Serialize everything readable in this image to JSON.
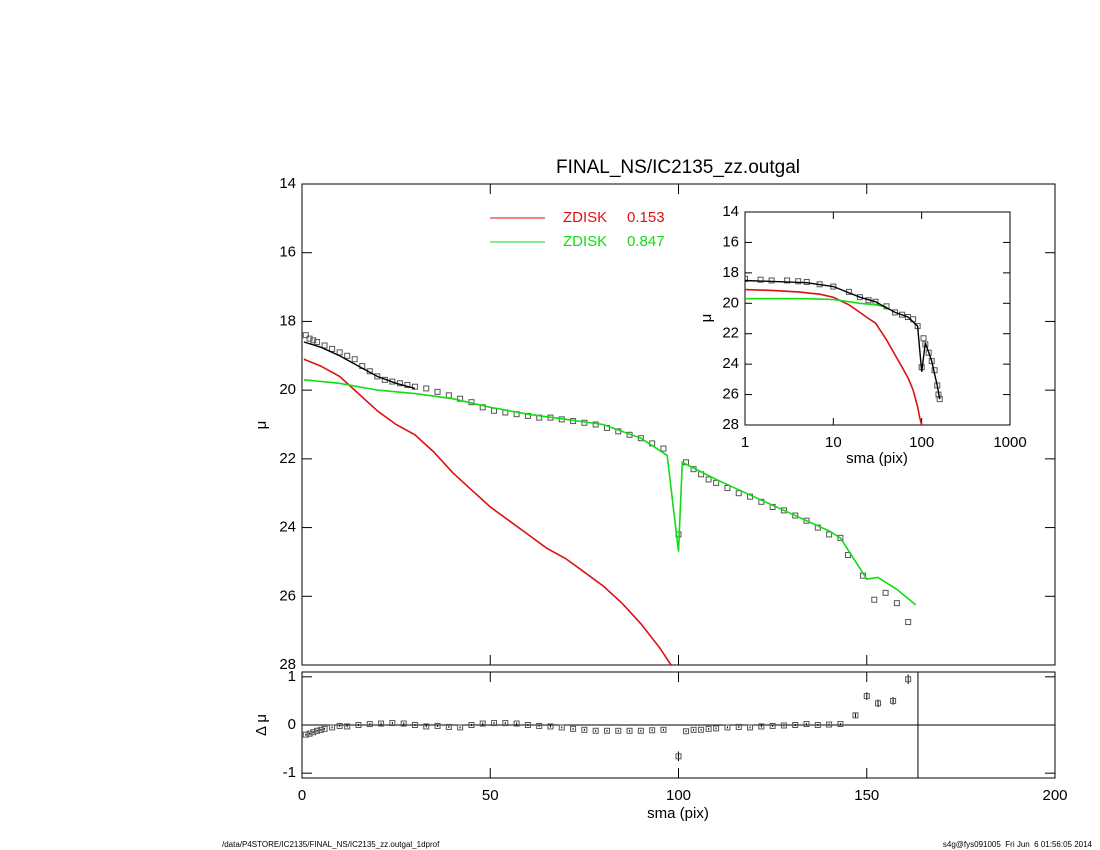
{
  "chart_data": [
    {
      "type": "line",
      "title": "FINAL_NS/IC2135_zz.outgal",
      "ylabel": "μ",
      "invert_y": true,
      "ylim": [
        14,
        28
      ],
      "yticks": [
        14,
        16,
        18,
        20,
        22,
        24,
        26,
        28
      ],
      "observed": {
        "color": "#555555",
        "x": [
          1,
          2,
          3,
          4,
          6,
          8,
          10,
          12,
          14,
          16,
          18,
          20,
          22,
          24,
          26,
          28,
          30,
          33,
          36,
          39,
          42,
          45,
          48,
          51,
          54,
          57,
          60,
          63,
          66,
          69,
          72,
          75,
          78,
          81,
          84,
          87,
          90,
          93,
          96,
          100,
          102,
          104,
          106,
          108,
          110,
          113,
          116,
          119,
          122,
          125,
          128,
          131,
          134,
          137,
          140,
          143,
          145,
          149,
          152,
          155,
          158,
          161
        ],
        "values": [
          18.4,
          18.5,
          18.55,
          18.6,
          18.7,
          18.8,
          18.9,
          19.0,
          19.1,
          19.3,
          19.45,
          19.6,
          19.7,
          19.75,
          19.8,
          19.85,
          19.9,
          19.95,
          20.05,
          20.15,
          20.25,
          20.35,
          20.5,
          20.6,
          20.65,
          20.7,
          20.75,
          20.8,
          20.8,
          20.85,
          20.9,
          20.95,
          21.0,
          21.1,
          21.2,
          21.3,
          21.4,
          21.55,
          21.7,
          24.2,
          22.1,
          22.3,
          22.45,
          22.6,
          22.7,
          22.85,
          23.0,
          23.1,
          23.25,
          23.4,
          23.5,
          23.65,
          23.8,
          24.0,
          24.2,
          24.3,
          24.8,
          25.4,
          26.1,
          25.9,
          26.2,
          26.75
        ]
      },
      "model": {
        "color": "#000000",
        "x": [
          0.5,
          5,
          10,
          15,
          20,
          25,
          30
        ],
        "values": [
          18.6,
          18.75,
          19.0,
          19.3,
          19.6,
          19.8,
          19.95
        ]
      },
      "series": [
        {
          "name": "ZDISK",
          "value": 0.153,
          "color": "#dd1111",
          "x": [
            0.5,
            5,
            10,
            15,
            20,
            25,
            30,
            35,
            40,
            45,
            50,
            55,
            60,
            65,
            70,
            75,
            80,
            85,
            90,
            95,
            98
          ],
          "values": [
            19.1,
            19.3,
            19.6,
            20.1,
            20.6,
            21.0,
            21.3,
            21.8,
            22.4,
            22.9,
            23.4,
            23.8,
            24.2,
            24.6,
            24.9,
            25.3,
            25.7,
            26.2,
            26.8,
            27.5,
            28.0
          ]
        },
        {
          "name": "ZDISK",
          "value": 0.847,
          "color": "#11dd11",
          "x": [
            0.5,
            10,
            20,
            30,
            40,
            50,
            60,
            70,
            80,
            90,
            97,
            100,
            101,
            110,
            120,
            130,
            140,
            143,
            150,
            153,
            158,
            163
          ],
          "values": [
            19.7,
            19.8,
            20.0,
            20.1,
            20.25,
            20.5,
            20.7,
            20.85,
            21.0,
            21.4,
            21.9,
            24.7,
            22.1,
            22.6,
            23.1,
            23.6,
            24.1,
            24.3,
            25.5,
            25.45,
            25.8,
            26.25
          ]
        }
      ]
    },
    {
      "type": "line",
      "xscale": "log",
      "xlabel": "sma (pix)",
      "ylabel": "μ",
      "invert_y": true,
      "xlim": [
        1,
        1000
      ],
      "xticks": [
        1,
        10,
        100,
        1000
      ],
      "ylim": [
        14,
        28
      ],
      "yticks": [
        14,
        16,
        18,
        20,
        22,
        24,
        26,
        28
      ],
      "observed": {
        "color": "#555555",
        "x": [
          1,
          1.5,
          2,
          3,
          4,
          5,
          7,
          10,
          15,
          20,
          25,
          30,
          40,
          50,
          60,
          70,
          80,
          90,
          100,
          105,
          110,
          120,
          130,
          140,
          150,
          155,
          160
        ],
        "values": [
          18.4,
          18.45,
          18.5,
          18.5,
          18.55,
          18.6,
          18.75,
          18.9,
          19.25,
          19.6,
          19.8,
          19.9,
          20.2,
          20.6,
          20.75,
          20.9,
          21.05,
          21.5,
          24.2,
          22.3,
          22.7,
          23.25,
          23.8,
          24.4,
          25.4,
          26.0,
          26.3
        ]
      },
      "model": {
        "color": "#000000",
        "x": [
          1,
          5,
          10,
          20,
          30,
          50,
          70,
          90,
          100,
          110,
          130,
          150,
          160
        ],
        "values": [
          18.5,
          18.65,
          18.9,
          19.6,
          19.9,
          20.6,
          20.9,
          21.5,
          24.5,
          22.6,
          23.8,
          25.4,
          26.3
        ]
      },
      "series": [
        {
          "color": "#dd1111",
          "x": [
            1,
            2,
            4,
            7,
            10,
            15,
            20,
            25,
            30,
            40,
            50,
            60,
            70,
            80,
            90,
            95,
            100
          ],
          "values": [
            19.1,
            19.15,
            19.25,
            19.4,
            19.6,
            20.1,
            20.6,
            21.0,
            21.3,
            22.4,
            23.4,
            24.2,
            24.9,
            25.7,
            26.8,
            27.5,
            28.0
          ]
        },
        {
          "color": "#11dd11",
          "x": [
            1,
            5,
            10,
            20,
            30,
            40
          ],
          "values": [
            19.7,
            19.7,
            19.75,
            20.0,
            20.1,
            20.25
          ]
        }
      ]
    },
    {
      "type": "scatter",
      "xlabel": "sma (pix)",
      "ylabel": "Δ μ",
      "color": "#555555",
      "xlim": [
        0,
        200
      ],
      "xticks": [
        0,
        50,
        100,
        150,
        200
      ],
      "ylim": [
        -1.1,
        1.1
      ],
      "yticks": [
        -1,
        0,
        1
      ],
      "ref_y": 0,
      "xmax": 163.6,
      "x": [
        1,
        2,
        3,
        4,
        5,
        6,
        8,
        10,
        12,
        15,
        18,
        21,
        24,
        27,
        30,
        33,
        36,
        39,
        42,
        45,
        48,
        51,
        54,
        57,
        60,
        63,
        66,
        69,
        72,
        75,
        78,
        81,
        84,
        87,
        90,
        93,
        96,
        100,
        102,
        104,
        106,
        108,
        110,
        113,
        116,
        119,
        122,
        125,
        128,
        131,
        134,
        137,
        140,
        143,
        147,
        150,
        153,
        157,
        161
      ],
      "values": [
        -0.2,
        -0.18,
        -0.15,
        -0.12,
        -0.1,
        -0.08,
        -0.05,
        -0.02,
        -0.03,
        0.0,
        0.02,
        0.03,
        0.04,
        0.03,
        0.0,
        -0.03,
        -0.02,
        -0.04,
        -0.05,
        0.0,
        0.03,
        0.04,
        0.04,
        0.03,
        0.0,
        -0.02,
        -0.03,
        -0.05,
        -0.08,
        -0.1,
        -0.12,
        -0.12,
        -0.12,
        -0.12,
        -0.12,
        -0.11,
        -0.1,
        -0.65,
        -0.13,
        -0.1,
        -0.1,
        -0.08,
        -0.07,
        -0.05,
        -0.04,
        -0.05,
        -0.03,
        -0.02,
        -0.01,
        0.0,
        0.02,
        0.0,
        0.01,
        0.02,
        0.2,
        0.6,
        0.45,
        0.5,
        0.95
      ],
      "errors": [
        0.02,
        0.02,
        0.02,
        0.02,
        0.02,
        0.02,
        0.02,
        0.02,
        0.02,
        0.02,
        0.02,
        0.02,
        0.02,
        0.02,
        0.02,
        0.02,
        0.02,
        0.02,
        0.02,
        0.02,
        0.02,
        0.02,
        0.02,
        0.02,
        0.02,
        0.02,
        0.02,
        0.02,
        0.02,
        0.02,
        0.02,
        0.02,
        0.02,
        0.02,
        0.02,
        0.02,
        0.02,
        0.1,
        0.02,
        0.02,
        0.02,
        0.02,
        0.02,
        0.02,
        0.02,
        0.02,
        0.02,
        0.02,
        0.02,
        0.02,
        0.02,
        0.02,
        0.02,
        0.02,
        0.05,
        0.08,
        0.08,
        0.08,
        0.1
      ]
    }
  ],
  "footer": {
    "left": "/data/P4STORE/IC2135/FINAL_NS/IC2135_zz.outgal_1dprof",
    "right": "s4g@fys091005  Fri Jun  6 01:56:05 2014"
  }
}
